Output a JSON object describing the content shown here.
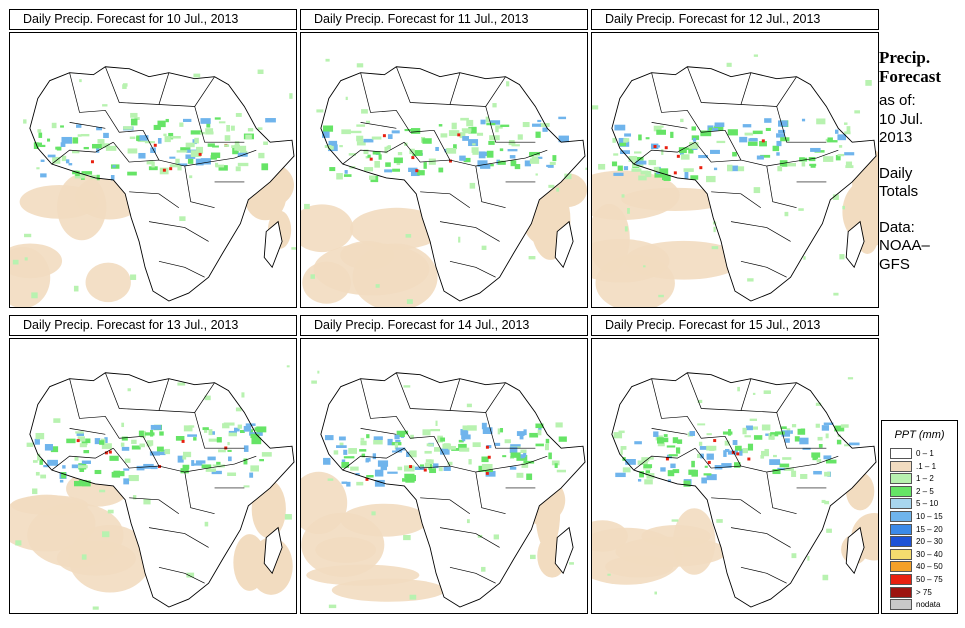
{
  "panels": [
    {
      "title": "Daily Precip. Forecast for  10 Jul., 2013"
    },
    {
      "title": "Daily Precip. Forecast for  11 Jul., 2013"
    },
    {
      "title": "Daily Precip. Forecast for  12 Jul., 2013"
    },
    {
      "title": "Daily Precip. Forecast for  13 Jul., 2013"
    },
    {
      "title": "Daily Precip. Forecast for  14 Jul., 2013"
    },
    {
      "title": "Daily Precip. Forecast for  15 Jul., 2013"
    }
  ],
  "side": {
    "heading_line1": "Precip.",
    "heading_line2": "Forecast",
    "asof_line1": "as of:",
    "asof_line2": "10 Jul.",
    "asof_line3": "2013",
    "totals_line1": "Daily",
    "totals_line2": "Totals",
    "data_line1": "Data:",
    "data_line2": "NOAA–",
    "data_line3": "GFS"
  },
  "legend": {
    "title": "PPT (mm)",
    "items": [
      {
        "label": "0 – 1",
        "color": "#ffffff"
      },
      {
        "label": ".1 – 1",
        "color": "#f2dcc0"
      },
      {
        "label": "1 – 2",
        "color": "#b8f2b0"
      },
      {
        "label": "2 – 5",
        "color": "#66e466"
      },
      {
        "label": "5 – 10",
        "color": "#a8d6ee"
      },
      {
        "label": "10 – 15",
        "color": "#6fb4ec"
      },
      {
        "label": "15 – 20",
        "color": "#3b8ae8"
      },
      {
        "label": "20 – 30",
        "color": "#1c52d6"
      },
      {
        "label": "30 – 40",
        "color": "#f4dc6e"
      },
      {
        "label": "40 – 50",
        "color": "#f4a028"
      },
      {
        "label": "50 – 75",
        "color": "#e82010"
      },
      {
        "label": "> 75",
        "color": "#9c1410"
      },
      {
        "label": "nodata",
        "color": "#c8c8c8"
      }
    ]
  },
  "colors": {
    "ocean_dry": "#f2dcc0",
    "light_rain": "#b8f2b0",
    "moderate_rain": "#66e466",
    "rain_blue": "#6fb4ec",
    "heavy": "#e82010"
  }
}
